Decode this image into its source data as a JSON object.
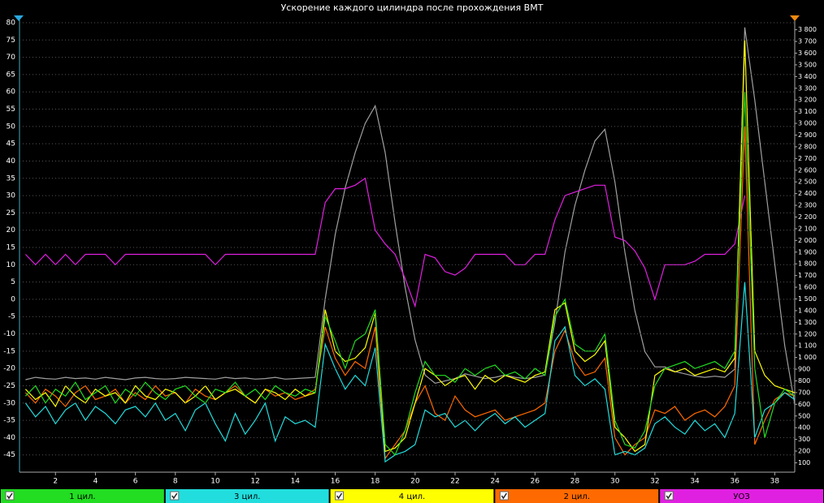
{
  "chart_data": {
    "type": "line",
    "title": "Ускорение каждого цилиндра после прохождения ВМТ",
    "x": [
      0.5,
      1,
      1.5,
      2,
      2.5,
      3,
      3.5,
      4,
      4.5,
      5,
      5.5,
      6,
      6.5,
      7,
      7.5,
      8,
      8.5,
      9,
      9.5,
      10,
      10.5,
      11,
      11.5,
      12,
      12.5,
      13,
      13.5,
      14,
      14.5,
      15,
      15.5,
      16,
      16.5,
      17,
      17.5,
      18,
      18.5,
      19,
      19.5,
      20,
      20.5,
      21,
      21.5,
      22,
      22.5,
      23,
      23.5,
      24,
      24.5,
      25,
      25.5,
      26,
      26.5,
      27,
      27.5,
      28,
      28.5,
      29,
      29.5,
      30,
      30.5,
      31,
      31.5,
      32,
      32.5,
      33,
      33.5,
      34,
      34.5,
      35,
      35.5,
      36,
      36.5,
      37,
      37.5,
      38,
      38.5,
      39
    ],
    "xlim": [
      0.2,
      39
    ],
    "xticks": [
      2,
      4,
      6,
      8,
      10,
      12,
      14,
      16,
      18,
      20,
      22,
      24,
      26,
      28,
      30,
      32,
      34,
      36,
      38
    ],
    "ylim": [
      -50,
      80
    ],
    "yticks": [
      80,
      75,
      70,
      65,
      60,
      55,
      50,
      45,
      40,
      35,
      30,
      25,
      20,
      15,
      10,
      5,
      0,
      -5,
      -10,
      -15,
      -20,
      -25,
      -30,
      -35,
      -40,
      -45
    ],
    "y2lim": [
      20,
      3860
    ],
    "y2ticks": [
      {
        "value": 3800,
        "label": "3 800"
      },
      {
        "value": 3700,
        "label": "3 700"
      },
      {
        "value": 3600,
        "label": "3 600"
      },
      {
        "value": 3500,
        "label": "3 500"
      },
      {
        "value": 3400,
        "label": "3 400"
      },
      {
        "value": 3300,
        "label": "3 300"
      },
      {
        "value": 3200,
        "label": "3 200"
      },
      {
        "value": 3100,
        "label": "3 100"
      },
      {
        "value": 3000,
        "label": "3 000"
      },
      {
        "value": 2900,
        "label": "2 900"
      },
      {
        "value": 2800,
        "label": "2 800"
      },
      {
        "value": 2700,
        "label": "2 700"
      },
      {
        "value": 2600,
        "label": "2 600"
      },
      {
        "value": 2500,
        "label": "2 500"
      },
      {
        "value": 2400,
        "label": "2 400"
      },
      {
        "value": 2300,
        "label": "2 300"
      },
      {
        "value": 2200,
        "label": "2 200"
      },
      {
        "value": 2100,
        "label": "2 100"
      },
      {
        "value": 2000,
        "label": "2 000"
      },
      {
        "value": 1900,
        "label": "1 900"
      },
      {
        "value": 1800,
        "label": "1 800"
      },
      {
        "value": 1700,
        "label": "1 700"
      },
      {
        "value": 1600,
        "label": "1 600"
      },
      {
        "value": 1500,
        "label": "1 500"
      },
      {
        "value": 1400,
        "label": "1 400"
      },
      {
        "value": 1300,
        "label": "1 300"
      },
      {
        "value": 1200,
        "label": "1 200"
      },
      {
        "value": 1100,
        "label": "1 100"
      },
      {
        "value": 1000,
        "label": "1 000"
      },
      900,
      800,
      700,
      600,
      500,
      400,
      300,
      200,
      100
    ],
    "grid": true,
    "series": [
      {
        "name": "1 цил.",
        "color": "#22dd22",
        "values": [
          -28,
          -25,
          -30,
          -26,
          -28,
          -24,
          -29,
          -27,
          -25,
          -30,
          -26,
          -28,
          -24,
          -27,
          -29,
          -26,
          -25,
          -28,
          -30,
          -26,
          -27,
          -24,
          -28,
          -26,
          -29,
          -25,
          -27,
          -28,
          -26,
          -27,
          -5,
          -12,
          -20,
          -12,
          -10,
          -3,
          -42,
          -45,
          -38,
          -27,
          -18,
          -22,
          -22,
          -24,
          -20,
          -22,
          -20,
          -19,
          -22,
          -21,
          -23,
          -20,
          -22,
          -5,
          0,
          -13,
          -15,
          -15,
          -10,
          -35,
          -42,
          -43,
          -38,
          -25,
          -20,
          -19,
          -18,
          -20,
          -19,
          -18,
          -20,
          -15,
          60,
          -20,
          -40,
          -30,
          -26,
          -28
        ]
      },
      {
        "name": "3 цил.",
        "color": "#22dddd",
        "values": [
          -30,
          -34,
          -31,
          -36,
          -32,
          -30,
          -35,
          -31,
          -33,
          -36,
          -32,
          -31,
          -34,
          -30,
          -35,
          -33,
          -38,
          -32,
          -30,
          -36,
          -41,
          -33,
          -39,
          -35,
          -30,
          -41,
          -34,
          -36,
          -35,
          -37,
          -13,
          -20,
          -26,
          -22,
          -25,
          -14,
          -47,
          -45,
          -44,
          -42,
          -32,
          -34,
          -33,
          -37,
          -35,
          -38,
          -35,
          -33,
          -36,
          -34,
          -37,
          -35,
          -33,
          -12,
          -8,
          -22,
          -25,
          -23,
          -26,
          -45,
          -44,
          -45,
          -43,
          -36,
          -34,
          -37,
          -39,
          -35,
          -38,
          -36,
          -40,
          -33,
          5,
          -40,
          -32,
          -30,
          -27,
          -29
        ]
      },
      {
        "name": "4 цил.",
        "color": "#ffff00",
        "values": [
          -26,
          -29,
          -27,
          -31,
          -25,
          -28,
          -30,
          -26,
          -28,
          -27,
          -30,
          -25,
          -28,
          -29,
          -26,
          -27,
          -30,
          -28,
          -25,
          -29,
          -27,
          -26,
          -28,
          -30,
          -26,
          -27,
          -29,
          -26,
          -28,
          -27,
          -3,
          -15,
          -18,
          -17,
          -14,
          -4,
          -44,
          -43,
          -40,
          -30,
          -20,
          -22,
          -25,
          -23,
          -22,
          -26,
          -22,
          -24,
          -22,
          -23,
          -24,
          -22,
          -21,
          -3,
          -1,
          -15,
          -18,
          -16,
          -12,
          -37,
          -40,
          -44,
          -42,
          -22,
          -20,
          -21,
          -20,
          -22,
          -21,
          -20,
          -21,
          -17,
          75,
          -15,
          -22,
          -25,
          -26,
          -27
        ]
      },
      {
        "name": "2 цил.",
        "color": "#ff6a00",
        "values": [
          -27,
          -30,
          -26,
          -28,
          -31,
          -27,
          -25,
          -29,
          -28,
          -26,
          -30,
          -27,
          -29,
          -25,
          -28,
          -27,
          -30,
          -26,
          -28,
          -29,
          -27,
          -25,
          -28,
          -30,
          -26,
          -28,
          -27,
          -29,
          -28,
          -26,
          -8,
          -17,
          -22,
          -18,
          -20,
          -8,
          -46,
          -42,
          -38,
          -30,
          -25,
          -33,
          -35,
          -28,
          -32,
          -34,
          -33,
          -32,
          -35,
          -34,
          -33,
          -32,
          -30,
          -15,
          -9,
          -18,
          -22,
          -21,
          -17,
          -40,
          -45,
          -42,
          -40,
          -32,
          -33,
          -31,
          -35,
          -33,
          -32,
          -34,
          -31,
          -25,
          50,
          -42,
          -35,
          -29,
          -27,
          -28
        ]
      },
      {
        "name": "УОЗ",
        "color": "#e020e0",
        "values": [
          13,
          10,
          13,
          10,
          13,
          10,
          13,
          13,
          13,
          10,
          13,
          13,
          13,
          13,
          13,
          13,
          13,
          13,
          13,
          10,
          13,
          13,
          13,
          13,
          13,
          13,
          13,
          13,
          13,
          13,
          28,
          32,
          32,
          33,
          35,
          20,
          16,
          13,
          6,
          -2,
          13,
          12,
          8,
          7,
          9,
          13,
          13,
          13,
          13,
          10,
          10,
          13,
          13,
          23,
          30,
          31,
          32,
          33,
          33,
          18,
          17,
          14,
          9,
          0,
          10,
          10,
          10,
          11,
          13,
          13,
          13,
          16,
          30,
          null,
          null,
          null,
          null,
          null
        ]
      },
      {
        "color": "#a0a0a0",
        "axis": "y2",
        "values": [
          810,
          830,
          820,
          815,
          830,
          820,
          825,
          815,
          830,
          820,
          810,
          825,
          830,
          820,
          815,
          820,
          830,
          825,
          820,
          815,
          830,
          820,
          825,
          815,
          820,
          830,
          815,
          820,
          825,
          830,
          1500,
          2050,
          2450,
          2750,
          3000,
          3150,
          2750,
          2150,
          1600,
          1150,
          850,
          780,
          800,
          820,
          860,
          840,
          820,
          830,
          850,
          830,
          820,
          830,
          850,
          1300,
          1900,
          2300,
          2600,
          2850,
          2950,
          2500,
          1900,
          1400,
          1050,
          920,
          920,
          880,
          860,
          840,
          830,
          840,
          830,
          900,
          3820,
          3200,
          2500,
          1800,
          1100,
          600
        ]
      }
    ]
  }
}
